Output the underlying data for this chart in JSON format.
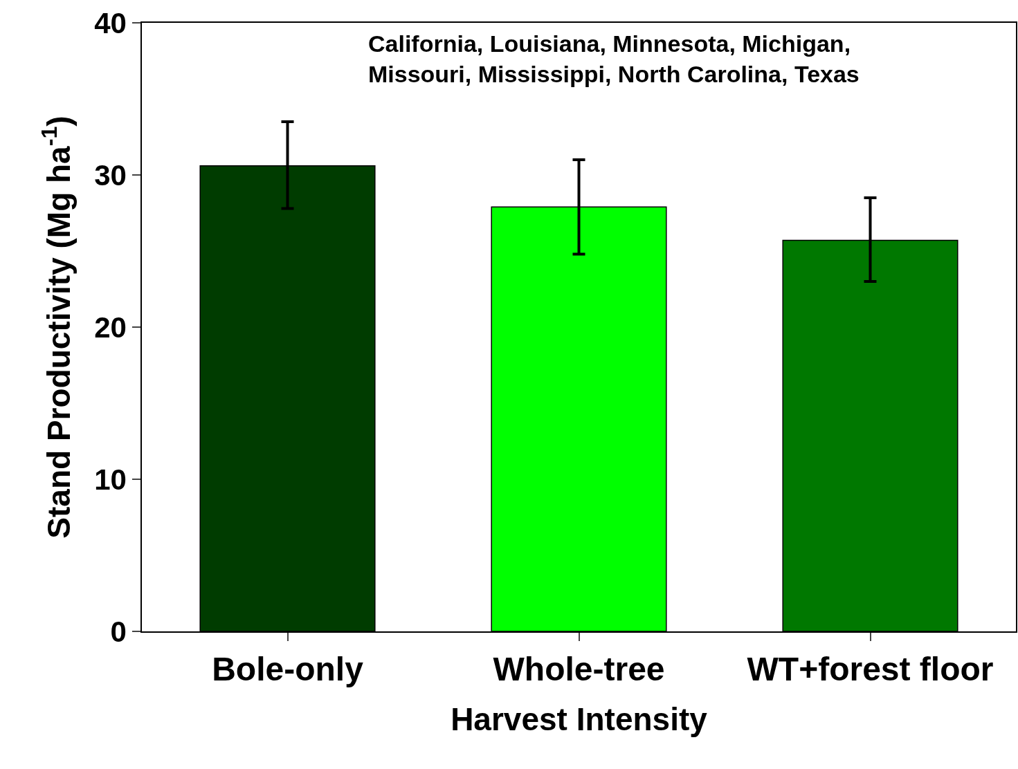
{
  "chart_data": {
    "type": "bar",
    "xlabel": "Harvest Intensity",
    "ylabel": "Stand Productivity (Mg ha$^{-1}$)",
    "categories": [
      "Bole-only",
      "Whole-tree",
      "WT+forest floor"
    ],
    "values": [
      30.6,
      27.9,
      25.7
    ],
    "colors": [
      "#003c00",
      "#00ff00",
      "#007800"
    ],
    "errors": [
      [
        27.8,
        33.5
      ],
      [
        24.8,
        31.0
      ],
      [
        23.0,
        28.5
      ]
    ],
    "ylim": [
      0,
      40
    ],
    "yticks": [
      0,
      10,
      20,
      30,
      40
    ],
    "grid": false,
    "annotations": [
      "California, Louisiana, Minnesota, Michigan, Missouri, Mississippi, North Carolina, Texas"
    ]
  }
}
